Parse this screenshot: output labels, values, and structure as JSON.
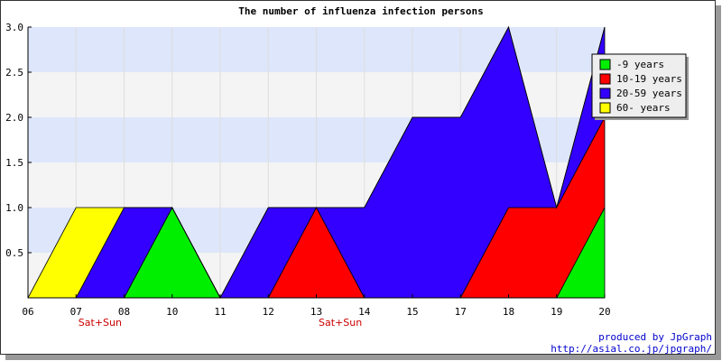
{
  "chart_data": {
    "type": "area",
    "stacked": true,
    "title": "The number of influenza infection persons",
    "xlabel": "",
    "ylabel": "",
    "categories": [
      "06",
      "07",
      "08",
      "10",
      "11",
      "12",
      "13",
      "14",
      "15",
      "17",
      "18",
      "19",
      "20"
    ],
    "weekend_labels": [
      {
        "after_category": "07",
        "text": "Sat+Sun"
      },
      {
        "after_category": "13",
        "text": "Sat+Sun"
      }
    ],
    "yticks": [
      "0.5",
      "1.0",
      "1.5",
      "2.0",
      "2.5",
      "3.0"
    ],
    "ylim": [
      0,
      3
    ],
    "series": [
      {
        "name": "-9 years",
        "color": "#00ee00",
        "values": [
          0,
          0,
          0,
          1,
          0,
          0,
          0,
          0,
          0,
          0,
          0,
          0,
          1
        ]
      },
      {
        "name": "10-19 years",
        "color": "#ff0000",
        "values": [
          0,
          0,
          0,
          0,
          0,
          0,
          1,
          0,
          0,
          0,
          1,
          1,
          1
        ]
      },
      {
        "name": "20-59 years",
        "color": "#3300ff",
        "values": [
          0,
          0,
          1,
          0,
          0,
          1,
          0,
          1,
          2,
          2,
          2,
          0,
          1
        ]
      },
      {
        "name": "60- years",
        "color": "#ffff00",
        "values": [
          0,
          1,
          0,
          0,
          0,
          0,
          0,
          0,
          0,
          0,
          0,
          0,
          0
        ]
      }
    ],
    "grid": true,
    "legend_position": "top-right"
  },
  "credits": {
    "line1": "produced by JpGraph",
    "line2": "http://asial.co.jp/jpgraph/"
  }
}
